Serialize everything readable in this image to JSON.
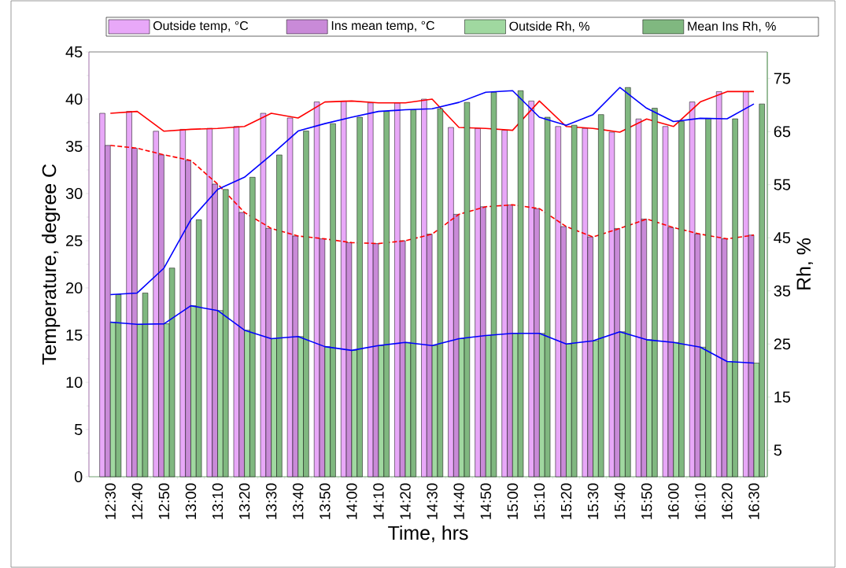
{
  "chart_data": {
    "type": "bar",
    "xlabel": "Time, hrs",
    "ylabel": "Temperature, degree C",
    "y2label": "Rh, %",
    "categories": [
      "12:30",
      "12:40",
      "12:50",
      "13:00",
      "13:10",
      "13:20",
      "13:30",
      "13:40",
      "13:50",
      "14:00",
      "14:10",
      "14:20",
      "14:30",
      "14:40",
      "14:50",
      "15:00",
      "15:10",
      "15:20",
      "15:30",
      "15:40",
      "15:50",
      "16:00",
      "16:10",
      "16:20",
      "16:30"
    ],
    "ylim": [
      0,
      45
    ],
    "yticks": [
      0,
      5,
      10,
      15,
      20,
      25,
      30,
      35,
      40,
      45
    ],
    "y2lim": [
      0,
      80
    ],
    "y2ticks": [
      5,
      15,
      25,
      35,
      45,
      55,
      65,
      75
    ],
    "legend": "top",
    "series": [
      {
        "name": "Outside temp, °C",
        "color": "#e8a8f8",
        "values": [
          38.5,
          38.7,
          36.6,
          36.8,
          36.9,
          37.1,
          38.5,
          38.0,
          39.7,
          39.8,
          39.6,
          39.6,
          40.0,
          37.0,
          36.9,
          36.7,
          39.8,
          37.1,
          36.9,
          36.5,
          37.9,
          37.1,
          39.7,
          40.8,
          40.8
        ]
      },
      {
        "name": "Ins mean temp, °C",
        "color": "#c98ad8",
        "values": [
          35.1,
          34.8,
          34.1,
          33.5,
          31.0,
          28.0,
          26.3,
          25.5,
          25.2,
          24.8,
          24.7,
          25.0,
          25.7,
          27.8,
          28.6,
          28.8,
          28.4,
          26.5,
          25.4,
          26.3,
          27.3,
          26.4,
          25.7,
          25.2,
          25.6
        ]
      },
      {
        "name": "Outside Rh, %",
        "color": "#a0d8a0",
        "axis": "y2",
        "values": [
          29.1,
          28.7,
          28.8,
          32.2,
          31.3,
          27.6,
          26.0,
          26.4,
          24.5,
          23.8,
          24.7,
          25.3,
          24.7,
          26.0,
          26.6,
          27.0,
          27.0,
          25.0,
          25.6,
          27.3,
          25.8,
          25.3,
          24.4,
          21.7,
          21.4
        ]
      },
      {
        "name": "Mean Ins Rh, %",
        "color": "#80b880",
        "axis": "y2",
        "values": [
          34.3,
          34.6,
          39.3,
          48.4,
          54.1,
          56.4,
          60.6,
          65.1,
          66.5,
          67.7,
          68.8,
          69.1,
          69.3,
          70.5,
          72.4,
          72.7,
          67.7,
          66.2,
          68.2,
          73.3,
          69.4,
          66.9,
          67.5,
          67.4,
          70.2
        ]
      },
      {
        "type": "line",
        "color": "#ff0000",
        "values": [
          38.5,
          38.7,
          36.6,
          36.8,
          36.9,
          37.1,
          38.5,
          38.0,
          39.7,
          39.8,
          39.6,
          39.6,
          40.0,
          37.0,
          36.9,
          36.7,
          39.8,
          37.1,
          36.9,
          36.5,
          37.9,
          37.1,
          39.7,
          40.8,
          40.8
        ]
      },
      {
        "type": "line",
        "color": "#ff0000",
        "line_style": "dashed",
        "values": [
          35.1,
          34.8,
          34.1,
          33.5,
          31.0,
          28.0,
          26.3,
          25.5,
          25.2,
          24.8,
          24.7,
          25.0,
          25.7,
          27.8,
          28.6,
          28.8,
          28.4,
          26.5,
          25.4,
          26.3,
          27.3,
          26.4,
          25.7,
          25.2,
          25.6
        ]
      },
      {
        "type": "line",
        "color": "#0000ff",
        "axis": "y2",
        "values": [
          29.1,
          28.7,
          28.8,
          32.2,
          31.3,
          27.6,
          26.0,
          26.4,
          24.5,
          23.8,
          24.7,
          25.3,
          24.7,
          26.0,
          26.6,
          27.0,
          27.0,
          25.0,
          25.6,
          27.3,
          25.8,
          25.3,
          24.4,
          21.7,
          21.4
        ]
      },
      {
        "type": "line",
        "color": "#0000ff",
        "axis": "y2",
        "values": [
          34.3,
          34.6,
          39.3,
          48.4,
          54.1,
          56.4,
          60.6,
          65.1,
          66.5,
          67.7,
          68.8,
          69.1,
          69.3,
          70.5,
          72.4,
          72.7,
          67.7,
          66.2,
          68.2,
          73.3,
          69.4,
          66.9,
          67.5,
          67.4,
          70.2
        ]
      }
    ]
  }
}
